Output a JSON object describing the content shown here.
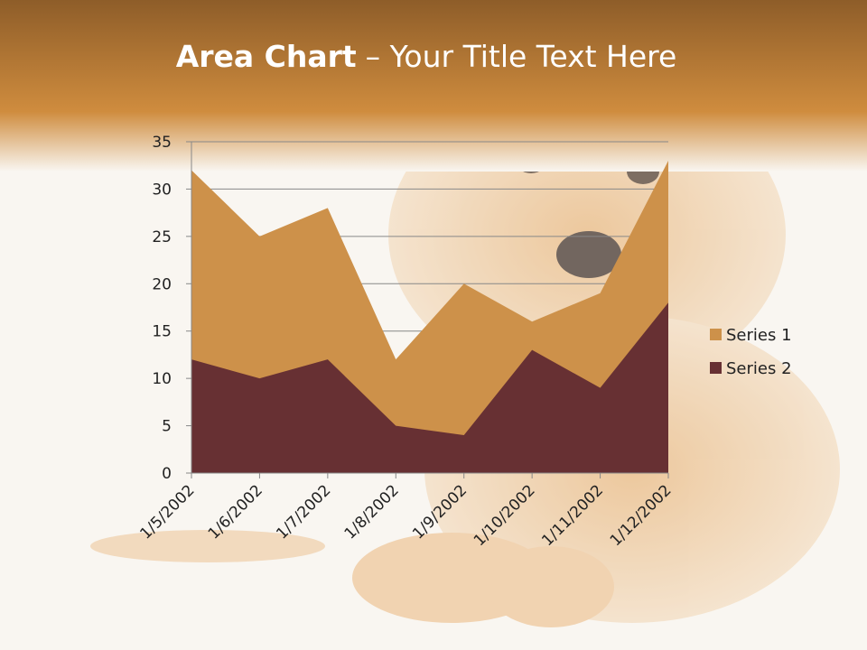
{
  "chart_data": {
    "type": "area",
    "title": "Area Chart",
    "subtitle": "– Your Title Text Here",
    "categories": [
      "1/5/2002",
      "1/6/2002",
      "1/7/2002",
      "1/8/2002",
      "1/9/2002",
      "1/10/2002",
      "1/11/2002",
      "1/12/2002"
    ],
    "series": [
      {
        "name": "Series 1",
        "color": "#cd914a",
        "values": [
          32,
          25,
          28,
          12,
          20,
          16,
          19,
          33
        ]
      },
      {
        "name": "Series 2",
        "color": "#673033",
        "values": [
          12,
          10,
          12,
          5,
          4,
          13,
          9,
          18
        ]
      }
    ],
    "ylim": [
      0,
      35
    ],
    "yticks": [
      0,
      5,
      10,
      15,
      20,
      25,
      30,
      35
    ],
    "grid": true,
    "legend": "right"
  }
}
